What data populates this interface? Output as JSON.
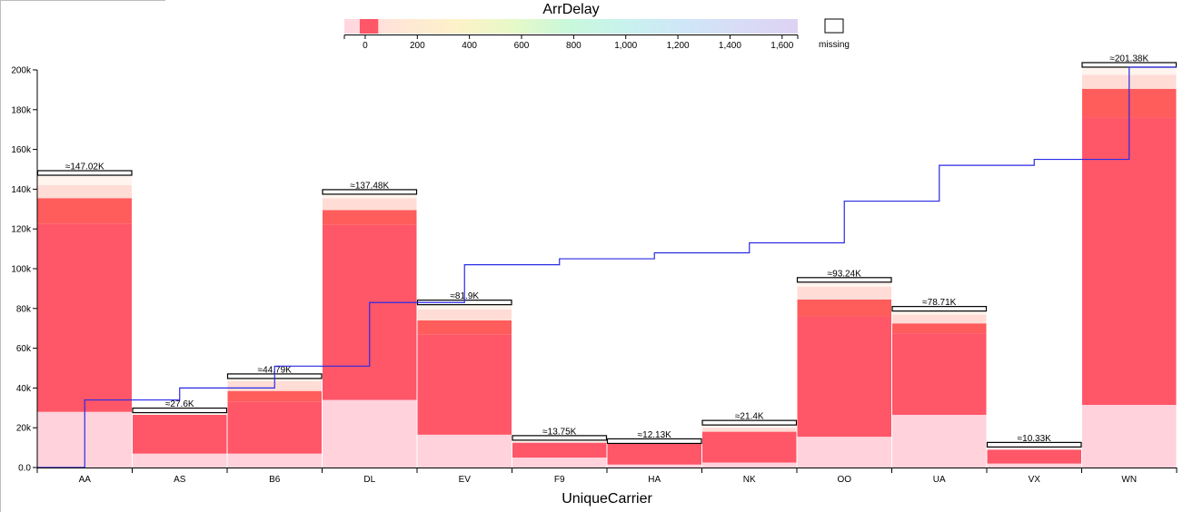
{
  "chart_data": {
    "type": "bar",
    "subtype": "stacked-histogram",
    "title": "",
    "xlabel": "UniqueCarrier",
    "ylabel": "",
    "ylim": [
      0,
      200000
    ],
    "y_ticks": [
      "0.0",
      "20k",
      "40k",
      "60k",
      "80k",
      "100k",
      "120k",
      "140k",
      "160k",
      "180k",
      "200k"
    ],
    "y_tick_values": [
      0,
      20000,
      40000,
      60000,
      80000,
      100000,
      120000,
      140000,
      160000,
      180000,
      200000
    ],
    "categories": [
      "AA",
      "AS",
      "B6",
      "DL",
      "EV",
      "F9",
      "HA",
      "NK",
      "OO",
      "UA",
      "VX",
      "WN"
    ],
    "total_labels": [
      "≈147.02K",
      "≈27.6K",
      "≈44.79K",
      "≈137.48K",
      "≈81.9K",
      "≈13.75K",
      "≈12.13K",
      "≈21.4K",
      "≈93.24K",
      "≈78.71K",
      "≈10.33K",
      "≈201.38K"
    ],
    "totals": [
      147020,
      27600,
      44790,
      137480,
      81900,
      13750,
      12130,
      21400,
      93240,
      78710,
      10330,
      201380
    ],
    "series": [
      {
        "values": [
          28000,
          7000,
          7000,
          34000,
          16500,
          5000,
          1500,
          2500,
          15500,
          26500,
          2000,
          31500
        ],
        "color": "#ffd2dc"
      },
      {
        "values": [
          94500,
          19500,
          26000,
          88000,
          50500,
          7500,
          10500,
          15500,
          60500,
          41000,
          7000,
          144500
        ],
        "color": "#ff5668"
      },
      {
        "values": [
          13000,
          0,
          5500,
          7500,
          7000,
          0,
          0,
          0,
          8500,
          5000,
          0,
          14500
        ],
        "color": "#ff5c5c"
      },
      {
        "values": [
          6500,
          0,
          5000,
          6000,
          5500,
          0,
          0,
          2000,
          6500,
          4500,
          0,
          7000
        ],
        "color": "#ffdcd6"
      },
      {
        "values": [
          5020,
          1100,
          1290,
          1980,
          2400,
          1250,
          130,
          1400,
          2240,
          1710,
          1330,
          3880
        ],
        "color": "#fff4ee"
      }
    ],
    "cumulative_line": {
      "color": "#2a2ae6",
      "values": [
        34000,
        40000,
        51000,
        83000,
        102000,
        105000,
        108000,
        113000,
        134000,
        152000,
        155000,
        201380
      ]
    },
    "legend": {
      "title": "ArrDelay",
      "placement": "top-center",
      "range": [
        -80,
        1660
      ],
      "selected_band": [
        0,
        50
      ],
      "selected_color": "#ff5668",
      "ticks": [
        "0",
        "200",
        "400",
        "600",
        "800",
        "1,000",
        "1,200",
        "1,400",
        "1,600"
      ],
      "tick_values": [
        0,
        200,
        400,
        600,
        800,
        1000,
        1200,
        1400,
        1600
      ],
      "missing_label": "missing",
      "gradient_colors": [
        "#ffd6e0",
        "#ffe6d6",
        "#fdf2c8",
        "#e6f9c8",
        "#c8f8dc",
        "#c8f2ee",
        "#cfe6f8",
        "#d8dcf6",
        "#ddd2f2"
      ]
    },
    "grid": false
  }
}
